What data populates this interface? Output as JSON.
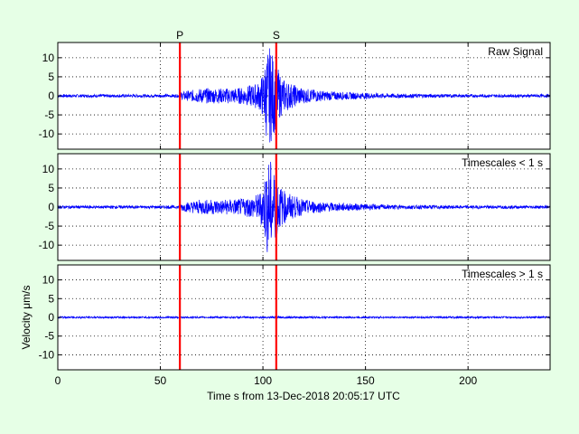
{
  "chart_data": {
    "type": "line",
    "xlabel": "Time s from 13-Dec-2018 20:05:17 UTC",
    "ylabel": "Velocity μm/s",
    "xlim": [
      0,
      240
    ],
    "ylim": [
      -14,
      14
    ],
    "xticks": [
      0,
      50,
      100,
      150,
      200
    ],
    "yticks": [
      10,
      5,
      0,
      -5,
      -10
    ],
    "grid": true,
    "background_color": "#e6ffe6",
    "signal_color": "#0000ff",
    "marker_color": "#ff0000",
    "markers": [
      {
        "label": "P",
        "x": 59.5
      },
      {
        "label": "S",
        "x": 106.5
      }
    ],
    "panels": [
      {
        "name": "Raw Signal",
        "series_envelope": {
          "x": [
            0,
            59,
            60,
            65,
            70,
            80,
            90,
            98,
            100,
            102,
            103,
            104,
            105,
            106,
            107,
            108,
            110,
            115,
            120,
            130,
            140,
            150,
            160,
            180,
            200,
            220,
            240
          ],
          "amplitude": [
            0.4,
            0.4,
            1.0,
            1.5,
            2.0,
            2.0,
            2.2,
            3.5,
            6.0,
            12.0,
            13.0,
            12.0,
            11.0,
            9.0,
            8.0,
            6.0,
            4.5,
            3.0,
            2.0,
            1.3,
            1.0,
            0.8,
            0.6,
            0.5,
            0.4,
            0.4,
            0.4
          ]
        }
      },
      {
        "name": "Timescales < 1 s",
        "series_envelope": {
          "x": [
            0,
            59,
            60,
            65,
            70,
            80,
            90,
            98,
            100,
            102,
            103,
            104,
            105,
            106,
            107,
            108,
            110,
            115,
            120,
            130,
            140,
            150,
            160,
            180,
            200,
            220,
            240
          ],
          "amplitude": [
            0.4,
            0.4,
            1.0,
            1.5,
            2.0,
            2.0,
            2.2,
            3.5,
            6.0,
            12.0,
            13.0,
            12.0,
            11.0,
            9.0,
            8.0,
            6.0,
            4.5,
            3.0,
            2.0,
            1.3,
            1.0,
            0.8,
            0.6,
            0.5,
            0.4,
            0.4,
            0.4
          ]
        }
      },
      {
        "name": "Timescales > 1 s",
        "series_envelope": {
          "x": [
            0,
            240
          ],
          "amplitude": [
            0.25,
            0.25
          ]
        }
      }
    ]
  }
}
